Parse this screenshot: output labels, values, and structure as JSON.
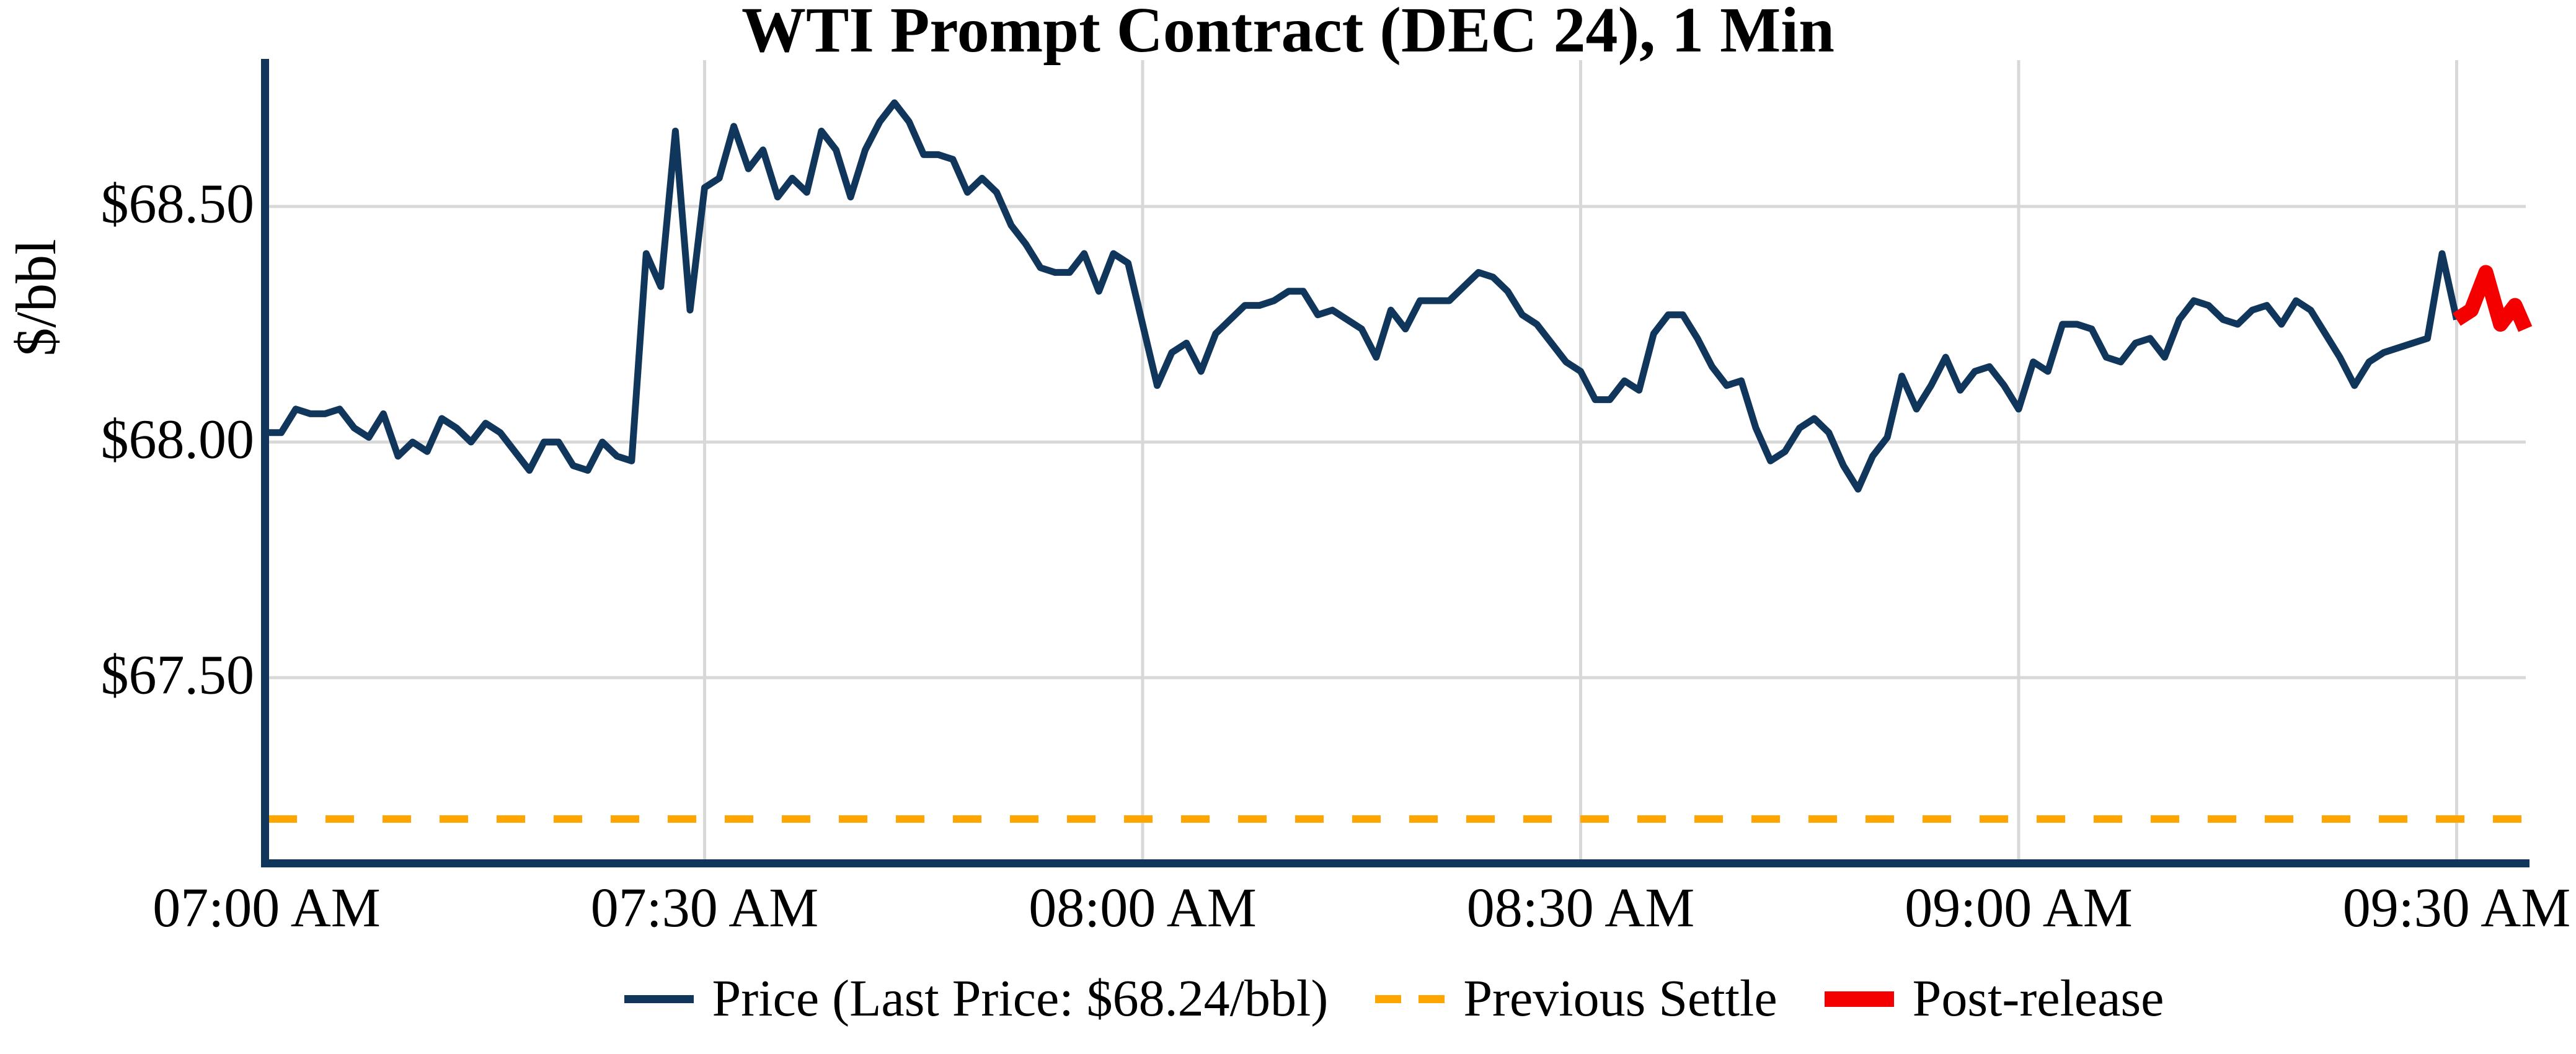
{
  "figure": {
    "title": "WTI Prompt Contract (DEC 24), 1 Min",
    "y_axis_label": "$/bbl"
  },
  "colors": {
    "price_line": "#11365c",
    "previous_settle": "#ffa500",
    "post_release": "#f50000",
    "gridline": "#d8d8d8",
    "axis_spine": "#11365c",
    "text": "#000000",
    "background": "#ffffff"
  },
  "legend": {
    "items": [
      {
        "label": "Price (Last Price: $68.24/bbl)",
        "swatch": "solid-line",
        "color_key": "price_line"
      },
      {
        "label": "Previous Settle",
        "swatch": "dashed-line",
        "color_key": "previous_settle"
      },
      {
        "label": "Post-release",
        "swatch": "thick-line",
        "color_key": "post_release"
      }
    ]
  },
  "chart_data": {
    "type": "line",
    "title": "WTI Prompt Contract (DEC 24), 1 Min",
    "xlabel": "",
    "ylabel": "$/bbl",
    "x_unit": "minutes after 07:00 AM",
    "xlim": [
      0,
      155
    ],
    "ylim": [
      67.1,
      68.81
    ],
    "grid": true,
    "legend_position": "bottom-center",
    "x_ticks": [
      {
        "t": 0,
        "label": "07:00 AM"
      },
      {
        "t": 30,
        "label": "07:30 AM"
      },
      {
        "t": 60,
        "label": "08:00 AM"
      },
      {
        "t": 90,
        "label": "08:30 AM"
      },
      {
        "t": 120,
        "label": "09:00 AM"
      },
      {
        "t": 150,
        "label": "09:30 AM"
      }
    ],
    "y_ticks": [
      {
        "value": 68.5,
        "label": "$68.50"
      },
      {
        "value": 68.0,
        "label": "$68.00"
      },
      {
        "value": 67.5,
        "label": "$67.50"
      }
    ],
    "previous_settle_value": 67.2,
    "last_price": 68.24,
    "series": [
      {
        "name": "Price",
        "color_key": "price_line",
        "width": 11,
        "t0": 0,
        "dt": 1,
        "values": [
          68.02,
          68.02,
          68.07,
          68.06,
          68.06,
          68.07,
          68.03,
          68.01,
          68.06,
          67.97,
          68.0,
          67.98,
          68.05,
          68.03,
          68.0,
          68.04,
          68.02,
          67.98,
          67.94,
          68.0,
          68.0,
          67.95,
          67.94,
          68.0,
          67.97,
          67.96,
          68.4,
          68.33,
          68.66,
          68.28,
          68.54,
          68.56,
          68.67,
          68.58,
          68.62,
          68.52,
          68.56,
          68.53,
          68.66,
          68.62,
          68.52,
          68.62,
          68.68,
          68.72,
          68.68,
          68.61,
          68.61,
          68.6,
          68.53,
          68.56,
          68.53,
          68.46,
          68.42,
          68.37,
          68.36,
          68.36,
          68.4,
          68.32,
          68.4,
          68.38,
          68.25,
          68.12,
          68.19,
          68.21,
          68.15,
          68.23,
          68.26,
          68.29,
          68.29,
          68.3,
          68.32,
          68.32,
          68.27,
          68.28,
          68.26,
          68.24,
          68.18,
          68.28,
          68.24,
          68.3,
          68.3,
          68.3,
          68.33,
          68.36,
          68.35,
          68.32,
          68.27,
          68.25,
          68.21,
          68.17,
          68.15,
          68.09,
          68.09,
          68.13,
          68.11,
          68.23,
          68.27,
          68.27,
          68.22,
          68.16,
          68.12,
          68.13,
          68.03,
          67.96,
          67.98,
          68.03,
          68.05,
          68.02,
          67.95,
          67.9,
          67.97,
          68.01,
          68.14,
          68.07,
          68.12,
          68.18,
          68.11,
          68.15,
          68.16,
          68.12,
          68.07,
          68.17,
          68.15,
          68.25,
          68.25,
          68.24,
          68.18,
          68.17,
          68.21,
          68.22,
          68.18,
          68.26,
          68.3,
          68.29,
          68.26,
          68.25,
          68.28,
          68.29,
          68.25,
          68.3,
          68.28,
          68.23,
          68.18,
          68.12,
          68.17,
          68.19,
          68.2,
          68.21,
          68.22,
          68.4,
          68.26
        ]
      },
      {
        "name": "Post-release",
        "color_key": "post_release",
        "width": 24,
        "x": [
          150,
          151,
          152,
          153,
          154,
          154.7
        ],
        "values": [
          68.26,
          68.28,
          68.36,
          68.25,
          68.29,
          68.24
        ]
      }
    ]
  }
}
